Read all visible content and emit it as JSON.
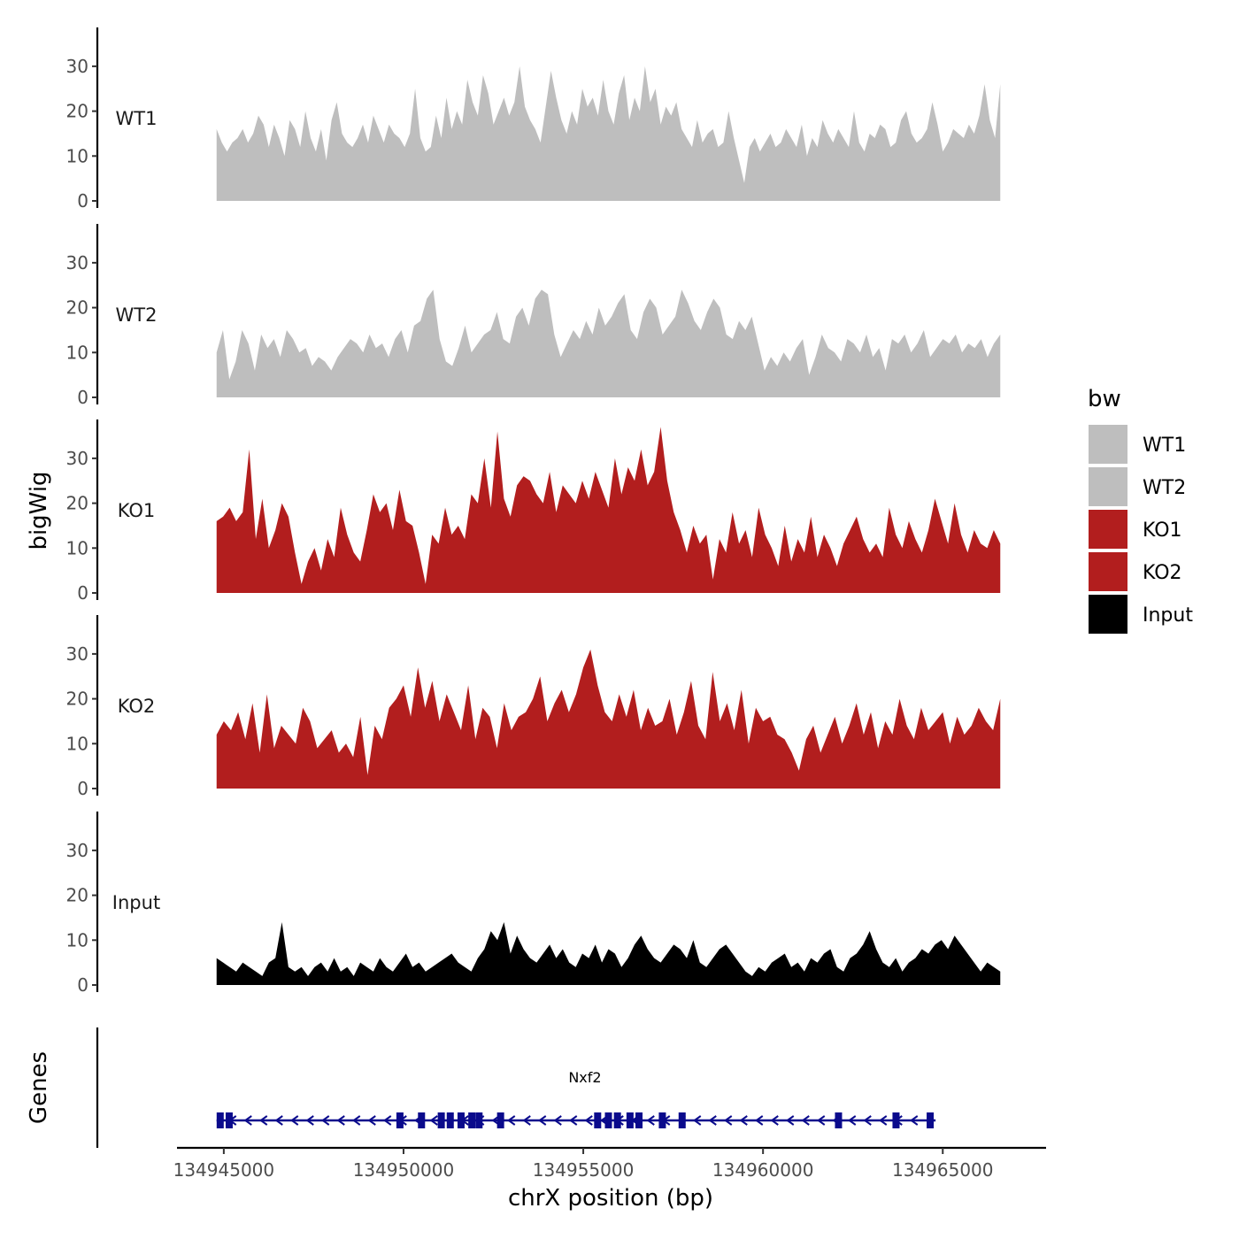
{
  "chart_data": {
    "type": "area",
    "ylabel": "bigWig",
    "xlabel": "chrX position (bp)",
    "ylim": [
      0,
      38
    ],
    "yticks": [
      0,
      10,
      20,
      30
    ],
    "xlim": [
      134943600,
      134967800
    ],
    "xticks": [
      134945000,
      134950000,
      134955000,
      134960000,
      134965000
    ],
    "xtick_labels": [
      "134945000",
      "134950000",
      "134955000",
      "134960000",
      "134965000"
    ],
    "data_range": [
      134944800,
      134966600
    ],
    "colors": {
      "WT": "#bebebe",
      "KO": "#b21e1e",
      "Input": "#000000",
      "gene": "#0a0a8c"
    },
    "series": [
      {
        "name": "WT1",
        "color": "#bebebe",
        "values": [
          16,
          13,
          11,
          13,
          14,
          16,
          13,
          15,
          19,
          17,
          12,
          17,
          14,
          10,
          18,
          16,
          12,
          20,
          14,
          11,
          16,
          9,
          18,
          22,
          15,
          13,
          12,
          14,
          17,
          13,
          19,
          16,
          13,
          17,
          15,
          14,
          12,
          15,
          25,
          14,
          11,
          12,
          19,
          14,
          23,
          16,
          20,
          17,
          27,
          22,
          19,
          28,
          24,
          17,
          20,
          23,
          19,
          22,
          30,
          21,
          18,
          16,
          13,
          21,
          29,
          23,
          18,
          15,
          20,
          17,
          25,
          21,
          23,
          19,
          27,
          20,
          17,
          24,
          28,
          18,
          23,
          20,
          30,
          22,
          25,
          17,
          21,
          19,
          22,
          16,
          14,
          12,
          18,
          13,
          15,
          16,
          12,
          13,
          20,
          14,
          9,
          4,
          12,
          14,
          11,
          13,
          15,
          12,
          13,
          16,
          14,
          12,
          17,
          10,
          14,
          12,
          18,
          15,
          13,
          16,
          14,
          12,
          20,
          13,
          11,
          15,
          14,
          17,
          16,
          12,
          13,
          18,
          20,
          15,
          13,
          14,
          16,
          22,
          17,
          11,
          13,
          16,
          15,
          14,
          17,
          15,
          19,
          26,
          18,
          14,
          26
        ]
      },
      {
        "name": "WT2",
        "color": "#bebebe",
        "values": [
          10,
          15,
          4,
          8,
          15,
          12,
          6,
          14,
          11,
          13,
          9,
          15,
          13,
          10,
          11,
          7,
          9,
          8,
          6,
          9,
          11,
          13,
          12,
          10,
          14,
          11,
          12,
          9,
          13,
          15,
          10,
          16,
          17,
          22,
          24,
          13,
          8,
          7,
          11,
          16,
          10,
          12,
          14,
          15,
          19,
          13,
          12,
          18,
          20,
          16,
          22,
          24,
          23,
          14,
          9,
          12,
          15,
          13,
          17,
          14,
          20,
          16,
          18,
          21,
          23,
          15,
          13,
          19,
          22,
          20,
          14,
          16,
          18,
          24,
          21,
          17,
          15,
          19,
          22,
          20,
          14,
          13,
          17,
          15,
          18,
          12,
          6,
          9,
          7,
          10,
          8,
          11,
          13,
          5,
          9,
          14,
          11,
          10,
          8,
          13,
          12,
          10,
          14,
          9,
          11,
          6,
          13,
          12,
          14,
          10,
          12,
          15,
          9,
          11,
          13,
          12,
          14,
          10,
          12,
          11,
          13,
          9,
          12,
          14
        ]
      },
      {
        "name": "KO1",
        "color": "#b21e1e",
        "values": [
          16,
          17,
          19,
          16,
          18,
          32,
          12,
          21,
          10,
          14,
          20,
          17,
          9,
          2,
          7,
          10,
          5,
          12,
          8,
          19,
          13,
          9,
          7,
          14,
          22,
          18,
          20,
          14,
          23,
          16,
          15,
          9,
          2,
          13,
          11,
          19,
          13,
          15,
          12,
          22,
          20,
          30,
          19,
          36,
          21,
          17,
          24,
          26,
          25,
          22,
          20,
          27,
          18,
          24,
          22,
          20,
          25,
          21,
          27,
          23,
          19,
          30,
          22,
          28,
          25,
          32,
          24,
          27,
          37,
          25,
          18,
          14,
          9,
          15,
          11,
          13,
          3,
          12,
          9,
          18,
          11,
          14,
          8,
          19,
          13,
          10,
          6,
          15,
          7,
          12,
          9,
          17,
          8,
          13,
          10,
          6,
          11,
          14,
          17,
          12,
          9,
          11,
          8,
          19,
          13,
          10,
          16,
          12,
          9,
          14,
          21,
          16,
          11,
          20,
          13,
          9,
          14,
          11,
          10,
          14,
          11
        ]
      },
      {
        "name": "KO2",
        "color": "#b21e1e",
        "values": [
          12,
          15,
          13,
          17,
          11,
          19,
          8,
          21,
          9,
          14,
          12,
          10,
          18,
          15,
          9,
          11,
          13,
          8,
          10,
          7,
          16,
          3,
          14,
          11,
          18,
          20,
          23,
          16,
          27,
          18,
          24,
          15,
          21,
          17,
          13,
          23,
          11,
          18,
          16,
          9,
          19,
          13,
          16,
          17,
          20,
          25,
          15,
          19,
          22,
          17,
          21,
          27,
          31,
          23,
          17,
          15,
          21,
          16,
          22,
          13,
          18,
          14,
          15,
          20,
          12,
          17,
          24,
          14,
          11,
          26,
          15,
          19,
          13,
          22,
          10,
          18,
          15,
          16,
          12,
          11,
          8,
          4,
          11,
          14,
          8,
          12,
          16,
          10,
          14,
          19,
          12,
          17,
          9,
          15,
          12,
          20,
          14,
          11,
          18,
          13,
          15,
          17,
          10,
          16,
          12,
          14,
          18,
          15,
          13,
          20
        ]
      },
      {
        "name": "Input",
        "color": "#000000",
        "values": [
          6,
          5,
          4,
          3,
          5,
          4,
          3,
          2,
          5,
          6,
          14,
          4,
          3,
          4,
          2,
          4,
          5,
          3,
          6,
          3,
          4,
          2,
          5,
          4,
          3,
          6,
          4,
          3,
          5,
          7,
          4,
          5,
          3,
          4,
          5,
          6,
          7,
          5,
          4,
          3,
          6,
          8,
          12,
          10,
          14,
          7,
          11,
          8,
          6,
          5,
          7,
          9,
          6,
          8,
          5,
          4,
          7,
          6,
          9,
          5,
          8,
          7,
          4,
          6,
          9,
          11,
          8,
          6,
          5,
          7,
          9,
          8,
          6,
          10,
          5,
          4,
          6,
          8,
          9,
          7,
          5,
          3,
          2,
          4,
          3,
          5,
          6,
          7,
          4,
          5,
          3,
          6,
          5,
          7,
          8,
          4,
          3,
          6,
          7,
          9,
          12,
          8,
          5,
          4,
          6,
          3,
          5,
          6,
          8,
          7,
          9,
          10,
          8,
          11,
          9,
          7,
          5,
          3,
          5,
          4,
          3
        ]
      }
    ],
    "legend": {
      "title": "bw",
      "position": "right",
      "items": [
        {
          "label": "WT1",
          "color": "#bebebe"
        },
        {
          "label": "WT2",
          "color": "#bebebe"
        },
        {
          "label": "KO1",
          "color": "#b21e1e"
        },
        {
          "label": "KO2",
          "color": "#b21e1e"
        },
        {
          "label": "Input",
          "color": "#000000"
        }
      ]
    },
    "genes_track": {
      "title": "Genes",
      "genes": [
        {
          "name": "Nxf2",
          "strand": "-",
          "start": 134944800,
          "end": 134964800,
          "exons": [
            134944900,
            134945150,
            134949900,
            134950500,
            134951050,
            134951300,
            134951600,
            134951900,
            134952100,
            134952700,
            134955400,
            134955700,
            134955950,
            134956300,
            134956550,
            134957200,
            134957750,
            134962100,
            134963700,
            134964650
          ]
        }
      ]
    }
  }
}
